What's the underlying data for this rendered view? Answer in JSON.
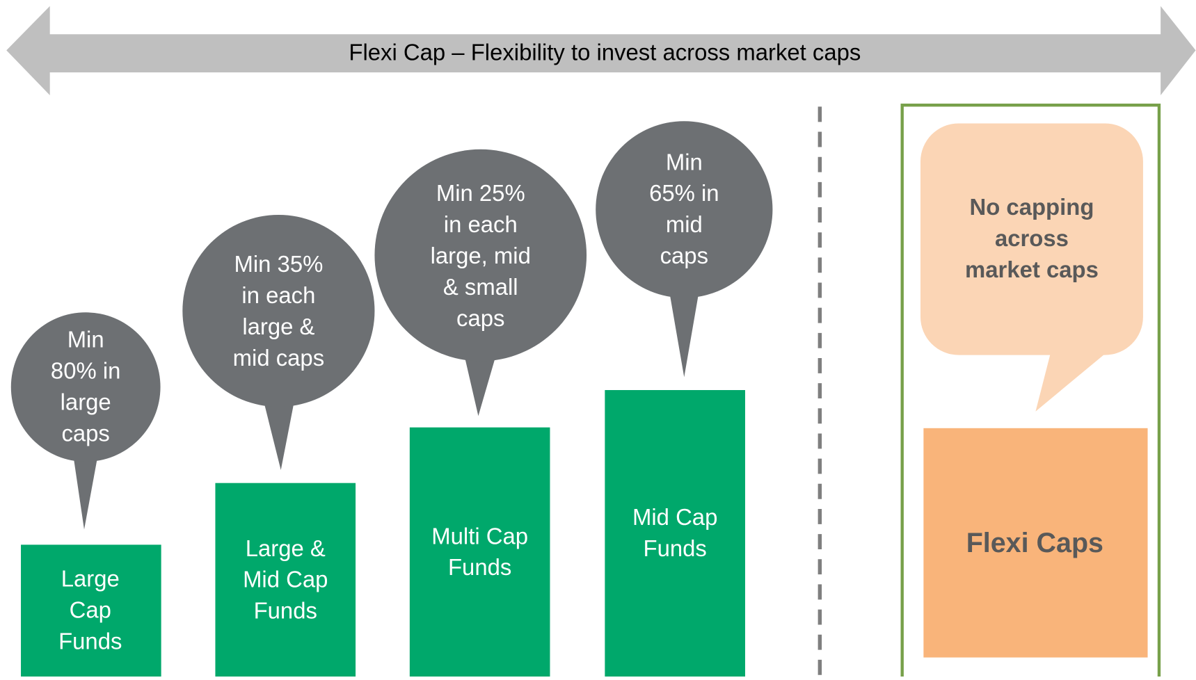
{
  "arrow_label": "Flexi Cap – Flexibility to invest across market caps",
  "funds": [
    {
      "bubble": [
        "Min",
        "80% in",
        "large",
        "caps"
      ],
      "label": [
        "Large",
        "Cap",
        "Funds"
      ]
    },
    {
      "bubble": [
        "Min 35%",
        "in each",
        "large &",
        "mid caps"
      ],
      "label": [
        "Large &",
        "Mid Cap",
        "Funds"
      ]
    },
    {
      "bubble": [
        "Min 25%",
        "in each",
        "large, mid",
        "& small",
        "caps"
      ],
      "label": [
        "Multi Cap",
        "Funds"
      ]
    },
    {
      "bubble": [
        "Min",
        "65% in",
        "mid",
        "caps"
      ],
      "label": [
        "Mid Cap",
        "Funds"
      ]
    }
  ],
  "flexi": {
    "bubble": [
      "No capping",
      "across",
      "market caps"
    ],
    "label": "Flexi Caps"
  }
}
